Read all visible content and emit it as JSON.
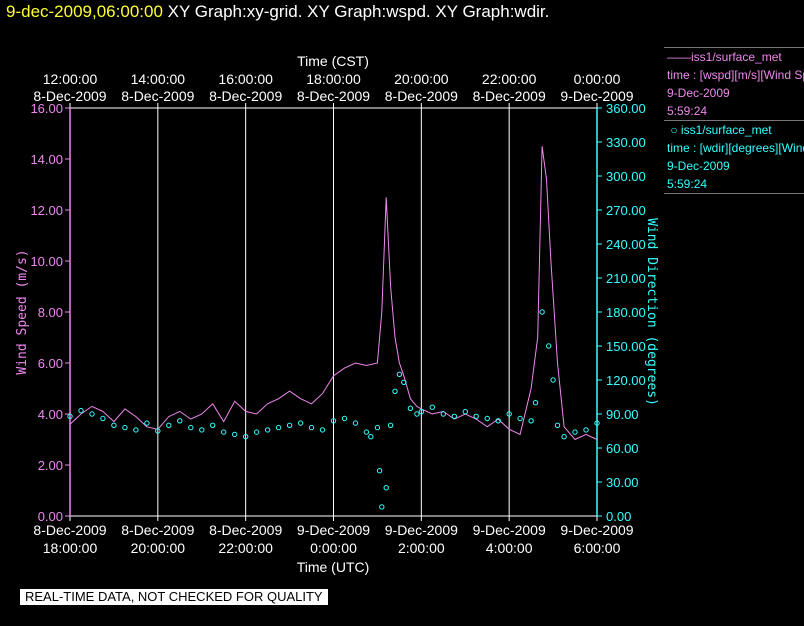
{
  "header": {
    "timestamp": "9-dec-2009,06:00:00",
    "titles": "XY Graph:xy-grid.  XY Graph:wspd.  XY Graph:wdir."
  },
  "footer": {
    "quality_note": "REAL-TIME DATA, NOT CHECKED FOR QUALITY"
  },
  "legend": [
    {
      "line1": "iss1/surface_met",
      "line2": "time : [wspd][m/s][Wind Speed]",
      "date": "9-Dec-2009",
      "time": "5:59:24",
      "marker": "line",
      "color": "#ee88ee"
    },
    {
      "line1": "iss1/surface_met",
      "line2": "time : [wdir][degrees][Wind Direction]",
      "date": "9-Dec-2009",
      "time": "5:59:24",
      "marker": "circle",
      "color": "#33ffff"
    }
  ],
  "chart_data": {
    "type": "line",
    "title": "",
    "xlabel": "Time (UTC)",
    "x2label": "Time (CST)",
    "ylabel": "Wind Speed (m/s)",
    "y2label": "Wind Direction (degrees)",
    "xlim_utc_hours": [
      18,
      30
    ],
    "ylim": [
      0,
      16
    ],
    "y2lim": [
      0,
      360
    ],
    "grid": "vertical lines at each 2-hour tick",
    "x_ticks_bottom": [
      {
        "date": "8-Dec-2009",
        "time": "18:00:00"
      },
      {
        "date": "8-Dec-2009",
        "time": "20:00:00"
      },
      {
        "date": "8-Dec-2009",
        "time": "22:00:00"
      },
      {
        "date": "9-Dec-2009",
        "time": "0:00:00"
      },
      {
        "date": "9-Dec-2009",
        "time": "2:00:00"
      },
      {
        "date": "9-Dec-2009",
        "time": "4:00:00"
      },
      {
        "date": "9-Dec-2009",
        "time": "6:00:00"
      }
    ],
    "x_ticks_top": [
      {
        "time": "12:00:00",
        "date": "8-Dec-2009"
      },
      {
        "time": "14:00:00",
        "date": "8-Dec-2009"
      },
      {
        "time": "16:00:00",
        "date": "8-Dec-2009"
      },
      {
        "time": "18:00:00",
        "date": "8-Dec-2009"
      },
      {
        "time": "20:00:00",
        "date": "8-Dec-2009"
      },
      {
        "time": "22:00:00",
        "date": "8-Dec-2009"
      },
      {
        "time": "0:00:00",
        "date": "9-Dec-2009"
      }
    ],
    "y_ticks": [
      "0.00",
      "2.00",
      "4.00",
      "6.00",
      "8.00",
      "10.00",
      "12.00",
      "14.00",
      "16.00"
    ],
    "y2_ticks": [
      "0.00",
      "30.00",
      "60.00",
      "90.00",
      "120.00",
      "150.00",
      "180.00",
      "210.00",
      "240.00",
      "270.00",
      "300.00",
      "330.00",
      "360.00"
    ],
    "series": [
      {
        "name": "iss1/surface_met",
        "axis": "left",
        "style": "line",
        "color": "#ee88ee",
        "x_utc_hours": [
          18.0,
          18.25,
          18.5,
          18.75,
          19.0,
          19.25,
          19.5,
          19.75,
          20.0,
          20.25,
          20.5,
          20.75,
          21.0,
          21.25,
          21.5,
          21.75,
          22.0,
          22.25,
          22.5,
          22.75,
          23.0,
          23.25,
          23.5,
          23.75,
          24.0,
          24.25,
          24.5,
          24.75,
          25.0,
          25.1,
          25.2,
          25.3,
          25.4,
          25.5,
          25.6,
          25.75,
          25.9,
          26.0,
          26.25,
          26.5,
          26.75,
          27.0,
          27.25,
          27.5,
          27.75,
          28.0,
          28.25,
          28.5,
          28.65,
          28.75,
          28.85,
          28.95,
          29.1,
          29.25,
          29.5,
          29.75,
          30.0
        ],
        "values": [
          3.6,
          4.0,
          4.3,
          4.1,
          3.7,
          4.2,
          3.9,
          3.5,
          3.4,
          3.9,
          4.1,
          3.8,
          4.0,
          4.4,
          3.7,
          4.5,
          4.1,
          4.0,
          4.4,
          4.6,
          4.9,
          4.6,
          4.4,
          4.8,
          5.5,
          5.8,
          6.0,
          5.9,
          6.0,
          8.0,
          12.5,
          9.0,
          7.0,
          6.0,
          5.5,
          4.6,
          4.3,
          4.2,
          4.0,
          4.1,
          3.8,
          4.0,
          3.8,
          3.5,
          3.8,
          3.4,
          3.2,
          5.0,
          7.0,
          14.5,
          13.2,
          10.0,
          6.0,
          3.5,
          3.0,
          3.2,
          3.0
        ]
      },
      {
        "name": "iss1/surface_met",
        "axis": "right",
        "style": "points",
        "color": "#33ffff",
        "x_utc_hours": [
          18.0,
          18.25,
          18.5,
          18.75,
          19.0,
          19.25,
          19.5,
          19.75,
          20.0,
          20.25,
          20.5,
          20.75,
          21.0,
          21.25,
          21.5,
          21.75,
          22.0,
          22.25,
          22.5,
          22.75,
          23.0,
          23.25,
          23.5,
          23.75,
          24.0,
          24.25,
          24.5,
          24.75,
          24.85,
          25.0,
          25.05,
          25.1,
          25.2,
          25.3,
          25.4,
          25.5,
          25.6,
          25.75,
          25.9,
          26.0,
          26.25,
          26.5,
          26.75,
          27.0,
          27.25,
          27.5,
          27.75,
          28.0,
          28.25,
          28.5,
          28.6,
          28.75,
          28.9,
          29.0,
          29.1,
          29.25,
          29.5,
          29.75,
          30.0
        ],
        "values": [
          88,
          93,
          90,
          86,
          80,
          78,
          76,
          82,
          75,
          80,
          84,
          78,
          76,
          80,
          74,
          72,
          70,
          74,
          76,
          78,
          80,
          82,
          78,
          76,
          84,
          86,
          82,
          74,
          70,
          78,
          40,
          8,
          25,
          80,
          110,
          125,
          118,
          95,
          90,
          92,
          96,
          90,
          88,
          92,
          88,
          86,
          84,
          90,
          86,
          84,
          100,
          180,
          150,
          120,
          80,
          70,
          74,
          76,
          82
        ]
      }
    ]
  }
}
